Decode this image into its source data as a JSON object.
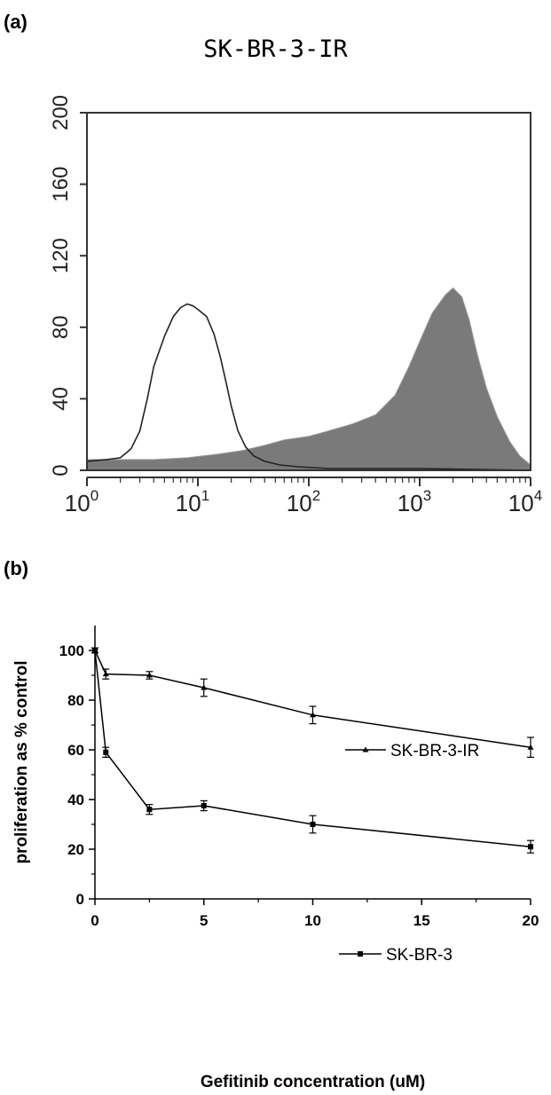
{
  "panels": {
    "a_label": "(a)",
    "b_label": "(b)"
  },
  "chart_data": [
    {
      "panel": "a",
      "type": "area",
      "title": "SK-BR-3-IR",
      "xscale": "log",
      "xlim": [
        1,
        10000
      ],
      "ylim": [
        0,
        200
      ],
      "x_ticks": [
        1,
        10,
        100,
        1000,
        10000
      ],
      "x_tick_labels": [
        {
          "base": "10",
          "exp": "0"
        },
        {
          "base": "10",
          "exp": "1"
        },
        {
          "base": "10",
          "exp": "2"
        },
        {
          "base": "10",
          "exp": "3"
        },
        {
          "base": "10",
          "exp": "4"
        }
      ],
      "y_ticks": [
        0,
        40,
        80,
        120,
        160,
        200
      ],
      "y_tick_labels": [
        "0",
        "40",
        "80",
        "120",
        "160",
        "200"
      ],
      "series": [
        {
          "style": "outline",
          "color": "#222222",
          "points": [
            [
              1.0,
              5
            ],
            [
              1.5,
              6
            ],
            [
              2.0,
              7
            ],
            [
              2.5,
              12
            ],
            [
              3.0,
              22
            ],
            [
              3.5,
              40
            ],
            [
              4.0,
              58
            ],
            [
              5.0,
              75
            ],
            [
              6.0,
              86
            ],
            [
              7.0,
              91
            ],
            [
              8.0,
              93
            ],
            [
              9.0,
              92
            ],
            [
              10.0,
              90
            ],
            [
              12.0,
              86
            ],
            [
              14.0,
              76
            ],
            [
              16.0,
              63
            ],
            [
              18.0,
              49
            ],
            [
              20.0,
              36
            ],
            [
              23.0,
              22
            ],
            [
              27.0,
              13
            ],
            [
              32.0,
              8
            ],
            [
              40.0,
              5
            ],
            [
              55.0,
              3
            ],
            [
              80.0,
              2
            ],
            [
              150.0,
              1
            ],
            [
              400.0,
              1
            ],
            [
              1000.0,
              1
            ],
            [
              10000.0,
              0
            ]
          ]
        },
        {
          "style": "filled",
          "color": "#7a7a7a",
          "points": [
            [
              1.0,
              6
            ],
            [
              2.0,
              6
            ],
            [
              4.0,
              6
            ],
            [
              8.0,
              7
            ],
            [
              15.0,
              9
            ],
            [
              25.0,
              11
            ],
            [
              40.0,
              14
            ],
            [
              60.0,
              17
            ],
            [
              100.0,
              19
            ],
            [
              150.0,
              22
            ],
            [
              250.0,
              26
            ],
            [
              400.0,
              31
            ],
            [
              600.0,
              42
            ],
            [
              800.0,
              58
            ],
            [
              1000.0,
              72
            ],
            [
              1300.0,
              88
            ],
            [
              1700.0,
              98
            ],
            [
              2000.0,
              102
            ],
            [
              2400.0,
              97
            ],
            [
              2800.0,
              84
            ],
            [
              3300.0,
              65
            ],
            [
              4000.0,
              46
            ],
            [
              5000.0,
              30
            ],
            [
              6500.0,
              16
            ],
            [
              8000.0,
              8
            ],
            [
              10000.0,
              3
            ]
          ]
        }
      ]
    },
    {
      "panel": "b",
      "type": "line",
      "xlabel": "Gefitinib concentration (uM)",
      "ylabel": "proliferation as % control",
      "xlim": [
        0,
        20
      ],
      "ylim": [
        0,
        110
      ],
      "x_ticks": [
        0,
        5,
        10,
        15,
        20
      ],
      "x_tick_labels": [
        "0",
        "5",
        "10",
        "15",
        "20"
      ],
      "y_ticks": [
        0,
        20,
        40,
        60,
        80,
        100
      ],
      "y_tick_labels": [
        "0",
        "20",
        "40",
        "60",
        "80",
        "100"
      ],
      "x": [
        0,
        0.5,
        2.5,
        5,
        10,
        20
      ],
      "series": [
        {
          "name": "SK-BR-3-IR",
          "marker": "triangle",
          "values": [
            100,
            90.5,
            90,
            85,
            74,
            61
          ],
          "errors": [
            1,
            2,
            1.5,
            3.5,
            3.5,
            4
          ]
        },
        {
          "name": "SK-BR-3",
          "marker": "square",
          "values": [
            100,
            59,
            36,
            37.5,
            30,
            21
          ],
          "errors": [
            1,
            2,
            2,
            2,
            3.5,
            2.5
          ]
        }
      ]
    }
  ]
}
